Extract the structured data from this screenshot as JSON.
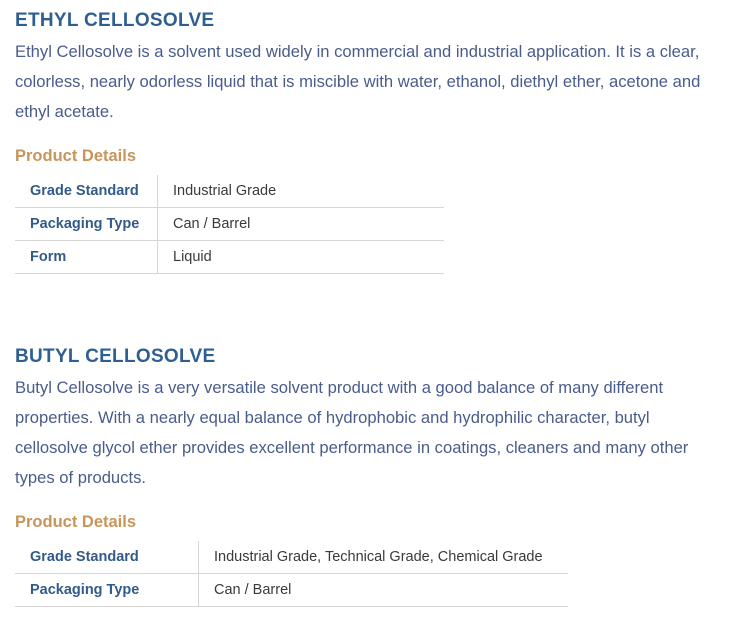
{
  "products": [
    {
      "title": "ETHYL CELLOSOLVE",
      "description": "Ethyl Cellosolve is a solvent used widely in commercial and industrial application. It is a clear, colorless, nearly odorless liquid that is miscible with water, ethanol, diethyl ether, acetone and ethyl acetate.",
      "details_heading": "Product Details",
      "details": [
        {
          "label": "Grade Standard",
          "value": "Industrial Grade"
        },
        {
          "label": "Packaging Type",
          "value": "Can / Barrel"
        },
        {
          "label": "Form",
          "value": "Liquid"
        }
      ]
    },
    {
      "title": "BUTYL CELLOSOLVE",
      "description": "Butyl Cellosolve is a very versatile solvent product with a good balance of many different properties. With a nearly equal balance of hydrophobic and hydrophilic character, butyl cellosolve glycol ether provides excellent performance in coatings, cleaners and many other types of products.",
      "details_heading": "Product Details",
      "details": [
        {
          "label": "Grade Standard",
          "value": "Industrial Grade, Technical Grade, Chemical Grade"
        },
        {
          "label": "Packaging Type",
          "value": "Can / Barrel"
        }
      ]
    }
  ],
  "colors": {
    "title": "#2f5f92",
    "text": "#4a5c8c",
    "accent": "#c8955a"
  }
}
